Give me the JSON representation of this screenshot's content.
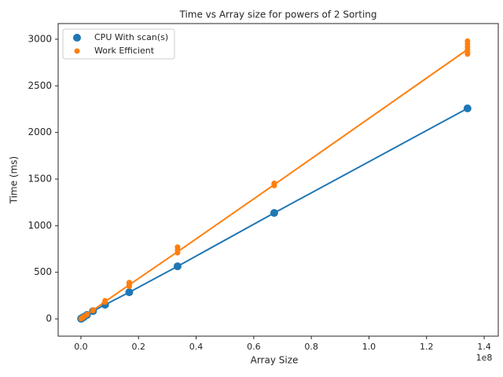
{
  "chart_data": {
    "type": "line_scatter",
    "title": "Time vs Array size for powers of 2 Sorting",
    "x_label": "Array Size",
    "y_label": "Time (ms)",
    "x_offset_label": "1e8",
    "xlim": [
      -7900000,
      144900000
    ],
    "ylim": [
      -185,
      3168
    ],
    "xticks": [
      {
        "value": 0,
        "label": "0.0"
      },
      {
        "value": 20000000,
        "label": "0.2"
      },
      {
        "value": 40000000,
        "label": "0.4"
      },
      {
        "value": 60000000,
        "label": "0.6"
      },
      {
        "value": 80000000,
        "label": "0.8"
      },
      {
        "value": 100000000,
        "label": "1.0"
      },
      {
        "value": 120000000,
        "label": "1.2"
      },
      {
        "value": 140000000,
        "label": "1.4"
      }
    ],
    "yticks": [
      0,
      500,
      1000,
      1500,
      2000,
      2500,
      3000
    ],
    "legend": "upper-left",
    "grid": false,
    "series": [
      {
        "name": "CPU With scan(s)",
        "color": "#1f77b4",
        "marker_size": 5,
        "x": [
          65536,
          131072,
          262144,
          524288,
          1048576,
          2097152,
          4194304,
          8388608,
          16777216,
          33554432,
          67108864,
          134217728
        ],
        "values": [
          2,
          3,
          6,
          11,
          21,
          42,
          84,
          152,
          286,
          564,
          1137,
          2258
        ],
        "line": {
          "x": [
            65536,
            131072,
            262144,
            524288,
            1048576,
            2097152,
            4194304,
            8388608,
            16777216,
            33554432,
            67108864,
            134217728
          ],
          "values": [
            2,
            3,
            6,
            11,
            21,
            42,
            84,
            152,
            286,
            564,
            1137,
            2258
          ]
        }
      },
      {
        "name": "Work Efficient",
        "color": "#ff7f0e",
        "marker_size": 3.5,
        "x": [
          65536,
          131072,
          262144,
          524288,
          1048576,
          2097152,
          2097152,
          4194304,
          4194304,
          8388608,
          8388608,
          16777216,
          16777216,
          16777216,
          33554432,
          33554432,
          33554432,
          67108864,
          67108864,
          67108864,
          134217728,
          134217728,
          134217728,
          134217728,
          134217728,
          134217728
        ],
        "values": [
          2,
          4,
          7,
          12,
          24,
          45,
          48,
          90,
          95,
          180,
          195,
          350,
          370,
          390,
          710,
          740,
          770,
          1430,
          1440,
          1455,
          2840,
          2860,
          2890,
          2920,
          2950,
          2980
        ],
        "line": {
          "x": [
            65536,
            131072,
            262144,
            524288,
            1048576,
            2097152,
            4194304,
            8388608,
            16777216,
            33554432,
            67108864,
            134217728
          ],
          "values": [
            2,
            4,
            7,
            12,
            24,
            46,
            92,
            185,
            365,
            720,
            1440,
            2890
          ]
        }
      }
    ]
  }
}
